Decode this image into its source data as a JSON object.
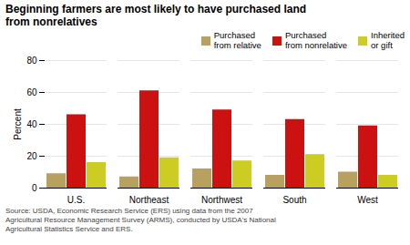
{
  "chart_data": {
    "type": "bar",
    "title": "Beginning farmers are most likely to have purchased land\nfrom nonrelatives",
    "caption": "Source:  USDA, Economic Research Service (ERS) using data from the 2007\nAgricultural Resource Management Survey (ARMS), conducted by USDA's National\nAgricultural Statistics Service and ERS.",
    "categories": [
      "U.S.",
      "Northeast",
      "Northwest",
      "South",
      "West"
    ],
    "series": [
      {
        "name": "Purchased\nfrom relative",
        "color": "#b8a060",
        "values": [
          9,
          7,
          12,
          8,
          10
        ]
      },
      {
        "name": "Purchased\nfrom nonrelative",
        "color": "#cc1111",
        "values": [
          46,
          61,
          49,
          43,
          39
        ]
      },
      {
        "name": "Inherited\nor gift",
        "color": "#cccc22",
        "values": [
          16,
          19,
          17,
          21,
          8
        ]
      }
    ],
    "ylabel": "Percent",
    "ylim": [
      0,
      80
    ],
    "yticks": [
      0,
      20,
      40,
      60,
      80
    ],
    "grid": true,
    "legend": "upper right"
  }
}
